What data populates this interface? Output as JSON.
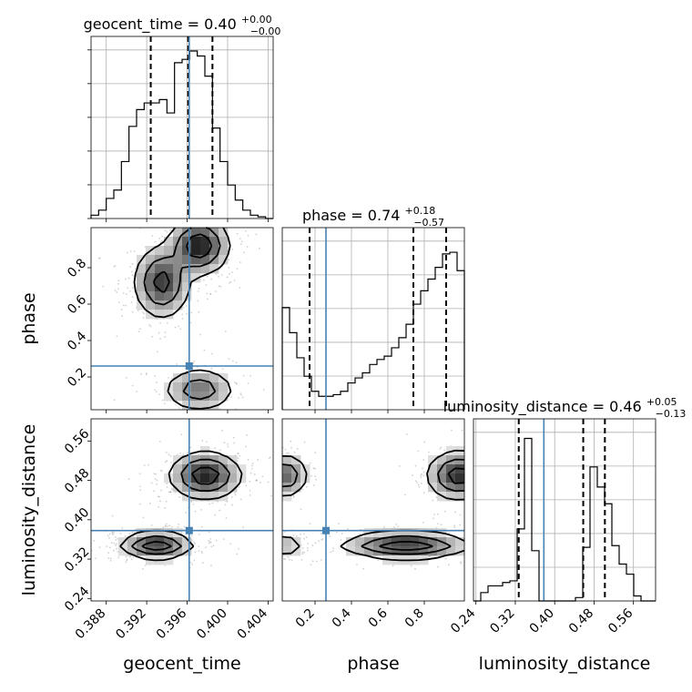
{
  "chart_data": {
    "type": "corner",
    "parameters": [
      {
        "name": "geocent_time",
        "xlabel": "geocent_time",
        "title_prefix": "geocent_time = 0.40",
        "title_sup": "+0.00",
        "title_sub": "−0.00",
        "range": [
          0.3865,
          0.4045
        ],
        "ticks": [
          0.388,
          0.392,
          0.396,
          0.4,
          0.404
        ],
        "tick_labels": [
          "0.388",
          "0.392",
          "0.396",
          "0.400",
          "0.404"
        ],
        "truth": 0.3962,
        "quantiles": [
          0.3924,
          0.3961,
          0.3985
        ],
        "hist": [
          0.02,
          0.05,
          0.12,
          0.17,
          0.34,
          0.55,
          0.65,
          0.69,
          0.69,
          0.71,
          0.63,
          0.93,
          0.95,
          1.0,
          0.97,
          0.85,
          0.54,
          0.34,
          0.2,
          0.11,
          0.05,
          0.02,
          0.01,
          0.0
        ]
      },
      {
        "name": "phase",
        "xlabel": "phase",
        "ylabel": "phase",
        "title_prefix": "phase = 0.74",
        "title_sup": "+0.18",
        "title_sub": "−0.57",
        "range": [
          0.02,
          1.02
        ],
        "ticks": [
          0.2,
          0.4,
          0.6,
          0.8
        ],
        "tick_labels": [
          "0.2",
          "0.4",
          "0.6",
          "0.8"
        ],
        "truth": 0.26,
        "quantiles": [
          0.17,
          0.74,
          0.92
        ],
        "hist": [
          0.61,
          0.46,
          0.31,
          0.2,
          0.11,
          0.08,
          0.08,
          0.09,
          0.11,
          0.16,
          0.19,
          0.22,
          0.27,
          0.3,
          0.32,
          0.37,
          0.43,
          0.51,
          0.63,
          0.71,
          0.78,
          0.85,
          0.93,
          0.94,
          0.83
        ]
      },
      {
        "name": "luminosity_distance",
        "xlabel": "luminosity_distance",
        "ylabel": "luminosity_distance",
        "title_prefix": "luminosity_distance = 0.46",
        "title_sup": "+0.05",
        "title_sub": "−0.13",
        "range": [
          0.235,
          0.605
        ],
        "ticks": [
          0.24,
          0.32,
          0.4,
          0.48,
          0.56
        ],
        "tick_labels": [
          "0.24",
          "0.32",
          "0.40",
          "0.48",
          "0.56"
        ],
        "truth": 0.378,
        "quantiles": [
          0.327,
          0.458,
          0.502
        ],
        "hist": [
          0.0,
          0.05,
          0.09,
          0.09,
          0.11,
          0.12,
          0.43,
          0.97,
          0.3,
          0.0,
          0.0,
          0.0,
          0.0,
          0.0,
          0.02,
          0.32,
          0.8,
          0.68,
          0.58,
          0.33,
          0.22,
          0.16,
          0.03,
          0.0,
          0.0
        ]
      }
    ],
    "pairs": [
      {
        "x": "geocent_time",
        "y": "phase",
        "modes": [
          {
            "cx": 0.3935,
            "cy": 0.72,
            "sx": 0.0014,
            "sy": 0.1,
            "w": 0.85
          },
          {
            "cx": 0.3972,
            "cy": 0.92,
            "sx": 0.0015,
            "sy": 0.08,
            "w": 1.0
          },
          {
            "cx": 0.3972,
            "cy": 0.13,
            "sx": 0.0018,
            "sy": 0.06,
            "w": 0.6
          }
        ]
      },
      {
        "x": "geocent_time",
        "y": "luminosity_distance",
        "modes": [
          {
            "cx": 0.393,
            "cy": 0.348,
            "sx": 0.0018,
            "sy": 0.013,
            "w": 1.0
          },
          {
            "cx": 0.3978,
            "cy": 0.49,
            "sx": 0.0018,
            "sy": 0.024,
            "w": 0.95
          }
        ]
      },
      {
        "x": "phase",
        "y": "luminosity_distance",
        "modes": [
          {
            "cx": 0.7,
            "cy": 0.348,
            "sx": 0.18,
            "sy": 0.013,
            "w": 1.0
          },
          {
            "cx": 0.99,
            "cy": 0.49,
            "sx": 0.09,
            "sy": 0.025,
            "w": 0.9
          },
          {
            "cx": 0.04,
            "cy": 0.49,
            "sx": 0.06,
            "sy": 0.022,
            "w": 0.7
          },
          {
            "cx": 0.04,
            "cy": 0.348,
            "sx": 0.05,
            "sy": 0.012,
            "w": 0.4
          }
        ]
      }
    ],
    "truth_color": "#4682b4",
    "grid": true
  }
}
